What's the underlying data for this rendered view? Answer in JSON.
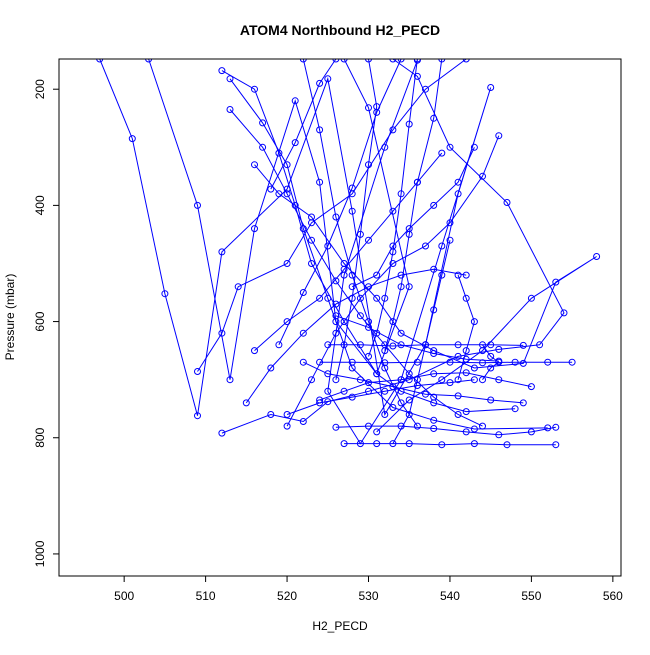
{
  "chart_data": {
    "type": "line",
    "title": "ATOM4 Northbound H2_PECD",
    "xlabel": "H2_PECD",
    "ylabel": "Pressure (mbar)",
    "xlim": [
      492,
      561
    ],
    "ylim": [
      1038,
      148
    ],
    "y_reversed": true,
    "xticks": [
      500,
      510,
      520,
      530,
      540,
      550,
      560
    ],
    "yticks": [
      200,
      400,
      600,
      800,
      1000
    ],
    "grid": false,
    "legend": "none",
    "color": "#0000ff",
    "markers": "open-circle",
    "series": [
      {
        "values": [
          [
            497,
            148
          ],
          [
            501,
            285
          ],
          [
            505,
            552
          ],
          [
            509,
            762
          ],
          [
            512,
            480
          ],
          [
            520,
            372
          ],
          [
            525,
            182
          ],
          [
            528,
            410
          ],
          [
            532,
            760
          ],
          [
            537,
            640
          ],
          [
            541,
            380
          ],
          [
            545,
            197
          ],
          [
            539,
            470
          ],
          [
            534,
            700
          ],
          [
            529,
            810
          ],
          [
            525,
            720
          ],
          [
            527,
            520
          ],
          [
            532,
            300
          ],
          [
            536,
            150
          ]
        ]
      },
      {
        "values": [
          [
            503,
            148
          ],
          [
            509,
            400
          ],
          [
            513,
            700
          ],
          [
            516,
            440
          ],
          [
            521,
            220
          ],
          [
            524,
            360
          ],
          [
            526,
            600
          ],
          [
            531,
            690
          ],
          [
            535,
            540
          ],
          [
            530,
            232
          ],
          [
            527,
            148
          ]
        ]
      },
      {
        "values": [
          [
            509,
            686
          ],
          [
            512,
            620
          ],
          [
            514,
            540
          ],
          [
            520,
            500
          ],
          [
            523,
            430
          ],
          [
            528,
            380
          ],
          [
            533,
            270
          ],
          [
            537,
            200
          ],
          [
            542,
            148
          ]
        ]
      },
      {
        "values": [
          [
            512,
            792
          ],
          [
            518,
            760
          ],
          [
            522,
            772
          ],
          [
            525,
            738
          ],
          [
            530,
            720
          ],
          [
            535,
            700
          ],
          [
            541,
            660
          ],
          [
            546,
            648
          ],
          [
            551,
            640
          ],
          [
            554,
            585
          ],
          [
            547,
            395
          ],
          [
            540,
            300
          ],
          [
            536,
            178
          ],
          [
            533,
            148
          ]
        ]
      },
      {
        "values": [
          [
            512,
            168
          ],
          [
            516,
            200
          ],
          [
            519,
            310
          ],
          [
            521,
            400
          ],
          [
            523,
            500
          ],
          [
            527,
            600
          ],
          [
            531,
            690
          ],
          [
            534,
            720
          ],
          [
            538,
            740
          ],
          [
            542,
            755
          ],
          [
            548,
            750
          ]
        ]
      },
      {
        "values": [
          [
            513,
            182
          ],
          [
            517,
            258
          ],
          [
            520,
            330
          ],
          [
            522,
            440
          ],
          [
            525,
            560
          ],
          [
            528,
            680
          ],
          [
            533,
            748
          ],
          [
            538,
            770
          ],
          [
            543,
            785
          ],
          [
            552,
            783
          ]
        ]
      },
      {
        "values": [
          [
            516,
            330
          ],
          [
            519,
            380
          ],
          [
            523,
            420
          ],
          [
            527,
            500
          ],
          [
            531,
            560
          ],
          [
            534,
            620
          ],
          [
            538,
            650
          ],
          [
            543,
            680
          ],
          [
            549,
            672
          ],
          [
            553,
            532
          ],
          [
            558,
            488
          ],
          [
            550,
            560
          ],
          [
            544,
            650
          ],
          [
            539,
            700
          ],
          [
            535,
            735
          ],
          [
            531,
            790
          ]
        ]
      },
      {
        "values": [
          [
            518,
            372
          ],
          [
            521,
            292
          ],
          [
            524,
            190
          ],
          [
            526,
            148
          ]
        ]
      },
      {
        "values": [
          [
            519,
            640
          ],
          [
            522,
            550
          ],
          [
            525,
            470
          ],
          [
            528,
            370
          ],
          [
            531,
            240
          ],
          [
            534,
            148
          ]
        ]
      },
      {
        "values": [
          [
            520,
            780
          ],
          [
            523,
            700
          ],
          [
            526,
            620
          ],
          [
            529,
            560
          ],
          [
            533,
            500
          ],
          [
            537,
            470
          ],
          [
            540,
            430
          ],
          [
            544,
            350
          ],
          [
            546,
            280
          ]
        ]
      },
      {
        "values": [
          [
            522,
            670
          ],
          [
            525,
            690
          ],
          [
            529,
            700
          ],
          [
            533,
            712
          ],
          [
            537,
            725
          ],
          [
            541,
            728
          ],
          [
            545,
            735
          ],
          [
            549,
            740
          ]
        ]
      },
      {
        "values": [
          [
            524,
            735
          ],
          [
            527,
            720
          ],
          [
            530,
            705
          ],
          [
            534,
            700
          ],
          [
            538,
            690
          ],
          [
            542,
            688
          ],
          [
            546,
            700
          ],
          [
            550,
            712
          ]
        ]
      },
      {
        "values": [
          [
            526,
            782
          ],
          [
            530,
            780
          ],
          [
            534,
            780
          ],
          [
            538,
            784
          ],
          [
            542,
            790
          ],
          [
            546,
            795
          ],
          [
            550,
            790
          ],
          [
            553,
            782
          ]
        ]
      },
      {
        "values": [
          [
            527,
            810
          ],
          [
            531,
            810
          ],
          [
            535,
            810
          ],
          [
            539,
            812
          ],
          [
            543,
            810
          ],
          [
            547,
            812
          ],
          [
            553,
            812
          ]
        ]
      },
      {
        "values": [
          [
            525,
            640
          ],
          [
            529,
            640
          ],
          [
            533,
            642
          ],
          [
            537,
            640
          ],
          [
            541,
            640
          ],
          [
            545,
            640
          ],
          [
            549,
            641
          ]
        ]
      },
      {
        "values": [
          [
            524,
            670
          ],
          [
            528,
            670
          ],
          [
            532,
            671
          ],
          [
            536,
            670
          ],
          [
            540,
            670
          ],
          [
            544,
            671
          ],
          [
            548,
            670
          ],
          [
            552,
            670
          ],
          [
            555,
            670
          ]
        ]
      },
      {
        "values": [
          [
            526,
            590
          ],
          [
            530,
            610
          ],
          [
            534,
            640
          ],
          [
            538,
            655
          ],
          [
            542,
            665
          ],
          [
            546,
            668
          ]
        ]
      },
      {
        "values": [
          [
            528,
            540
          ],
          [
            531,
            520
          ],
          [
            533,
            470
          ],
          [
            535,
            440
          ],
          [
            538,
            400
          ],
          [
            541,
            360
          ],
          [
            543,
            300
          ]
        ]
      },
      {
        "values": [
          [
            530,
            148
          ],
          [
            531,
            230
          ],
          [
            530,
            330
          ],
          [
            529,
            450
          ],
          [
            528,
            560
          ],
          [
            527,
            640
          ],
          [
            526,
            700
          ]
        ]
      },
      {
        "values": [
          [
            522,
            148
          ],
          [
            524,
            270
          ],
          [
            526,
            420
          ],
          [
            528,
            520
          ],
          [
            530,
            600
          ],
          [
            532,
            680
          ],
          [
            534,
            740
          ],
          [
            536,
            780
          ]
        ]
      },
      {
        "values": [
          [
            515,
            740
          ],
          [
            518,
            680
          ],
          [
            522,
            620
          ],
          [
            526,
            570
          ],
          [
            530,
            540
          ],
          [
            534,
            520
          ],
          [
            538,
            510
          ],
          [
            542,
            520
          ]
        ]
      },
      {
        "values": [
          [
            536,
            148
          ],
          [
            535,
            260
          ],
          [
            534,
            380
          ],
          [
            533,
            480
          ],
          [
            532,
            560
          ],
          [
            531,
            620
          ],
          [
            530,
            660
          ]
        ]
      },
      {
        "values": [
          [
            539,
            148
          ],
          [
            538,
            250
          ],
          [
            536,
            360
          ],
          [
            535,
            450
          ],
          [
            534,
            540
          ],
          [
            533,
            600
          ],
          [
            532,
            650
          ]
        ]
      },
      {
        "values": [
          [
            513,
            235
          ],
          [
            517,
            300
          ],
          [
            520,
            380
          ],
          [
            523,
            460
          ],
          [
            526,
            530
          ],
          [
            529,
            590
          ],
          [
            532,
            640
          ],
          [
            535,
            690
          ],
          [
            538,
            730
          ],
          [
            541,
            760
          ],
          [
            544,
            780
          ]
        ]
      },
      {
        "values": [
          [
            516,
            650
          ],
          [
            520,
            600
          ],
          [
            524,
            560
          ],
          [
            527,
            510
          ],
          [
            530,
            460
          ],
          [
            533,
            410
          ],
          [
            536,
            360
          ],
          [
            539,
            310
          ]
        ]
      },
      {
        "values": [
          [
            520,
            760
          ],
          [
            524,
            740
          ],
          [
            528,
            730
          ],
          [
            532,
            720
          ],
          [
            536,
            710
          ],
          [
            540,
            705
          ],
          [
            543,
            700
          ]
        ]
      },
      {
        "values": [
          [
            533,
            810
          ],
          [
            535,
            760
          ],
          [
            536,
            700
          ],
          [
            537,
            640
          ],
          [
            538,
            580
          ],
          [
            539,
            520
          ],
          [
            540,
            460
          ]
        ]
      },
      {
        "values": [
          [
            541,
            700
          ],
          [
            542,
            650
          ],
          [
            543,
            600
          ],
          [
            542,
            560
          ],
          [
            541,
            520
          ]
        ]
      },
      {
        "values": [
          [
            544,
            700
          ],
          [
            545,
            680
          ],
          [
            546,
            670
          ],
          [
            545,
            660
          ],
          [
            544,
            640
          ]
        ]
      }
    ]
  }
}
